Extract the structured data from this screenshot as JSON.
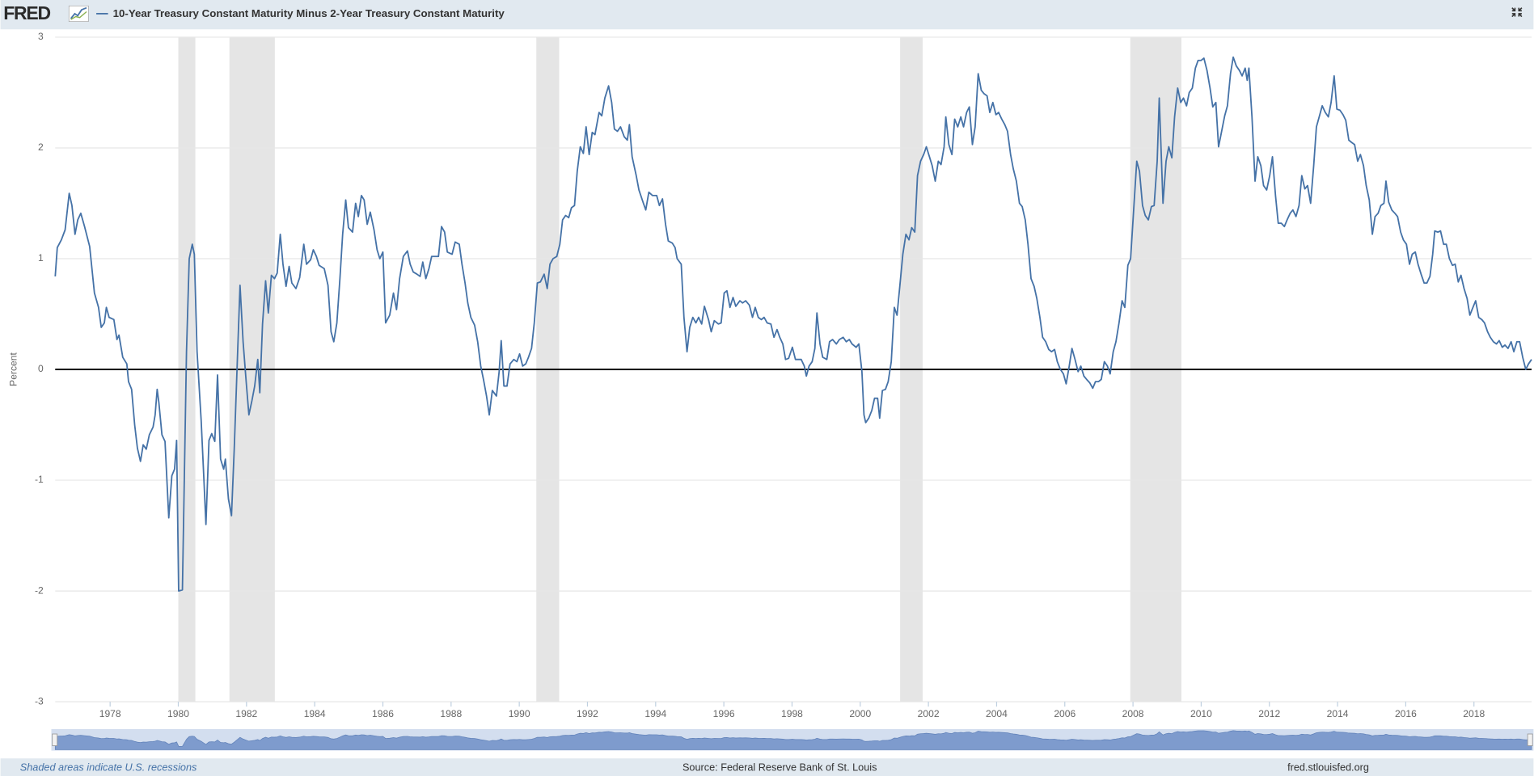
{
  "logo": "FRED",
  "footer": {
    "note": "Shaded areas indicate U.S. recessions",
    "source": "Source: Federal Reserve Bank of St. Louis",
    "site": "fred.stlouisfed.org"
  },
  "chart_data": {
    "type": "line",
    "y_label": "Percent",
    "series": [
      {
        "name": "10-Year Treasury Constant Maturity Minus 2-Year Treasury Constant Maturity",
        "color": "#4572a7",
        "values": [
          0.84,
          1.1,
          1.17,
          1.26,
          1.59,
          1.48,
          1.22,
          1.35,
          1.41,
          1.29,
          1.11,
          0.69,
          0.56,
          0.38,
          0.42,
          0.56,
          0.47,
          0.45,
          0.27,
          0.31,
          0.11,
          0.05,
          -0.11,
          -0.18,
          -0.5,
          -0.71,
          -0.83,
          -0.68,
          -0.72,
          -0.59,
          -0.52,
          -0.41,
          -0.18,
          -0.3,
          -0.59,
          -0.65,
          -1.34,
          -0.96,
          -0.9,
          -0.64,
          -2.0,
          -1.99,
          0.16,
          1.0,
          1.13,
          1.04,
          0.16,
          -0.46,
          -0.99,
          -1.4,
          -0.64,
          -0.58,
          -0.65,
          -0.05,
          -0.81,
          -0.9,
          -0.81,
          -1.17,
          -1.32,
          -0.72,
          0.07,
          0.76,
          0.25,
          -0.11,
          -0.41,
          -0.28,
          -0.15,
          0.09,
          -0.21,
          0.41,
          0.8,
          0.51,
          0.85,
          0.82,
          0.87,
          1.22,
          0.95,
          0.75,
          0.93,
          0.78,
          0.73,
          0.83,
          1.13,
          0.95,
          0.99,
          1.08,
          1.02,
          0.94,
          0.91,
          0.76,
          0.34,
          0.25,
          0.42,
          0.82,
          1.22,
          1.53,
          1.28,
          1.24,
          1.5,
          1.38,
          1.57,
          1.53,
          1.31,
          1.42,
          1.26,
          1.08,
          1.0,
          1.06,
          0.42,
          0.49,
          0.69,
          0.54,
          0.82,
          1.02,
          1.07,
          0.95,
          0.88,
          0.86,
          0.84,
          0.97,
          0.82,
          0.91,
          1.02,
          1.02,
          1.02,
          1.29,
          1.24,
          1.06,
          1.04,
          1.15,
          1.13,
          0.95,
          0.78,
          0.6,
          0.47,
          0.4,
          0.25,
          0.03,
          -0.09,
          -0.24,
          -0.41,
          -0.19,
          -0.24,
          -0.02,
          0.26,
          -0.15,
          -0.15,
          0.05,
          0.09,
          0.07,
          0.14,
          0.03,
          0.05,
          0.11,
          0.19,
          0.42,
          0.78,
          0.79,
          0.86,
          0.73,
          0.95,
          1.0,
          1.02,
          1.13,
          1.35,
          1.39,
          1.37,
          1.46,
          1.48,
          1.79,
          2.01,
          1.95,
          2.19,
          1.94,
          2.14,
          2.12,
          2.32,
          2.29,
          2.45,
          2.56,
          2.41,
          2.17,
          2.15,
          2.19,
          2.1,
          2.07,
          2.21,
          1.92,
          1.75,
          1.62,
          1.51,
          1.44,
          1.6,
          1.57,
          1.57,
          1.48,
          1.54,
          1.31,
          1.16,
          1.14,
          1.1,
          1.0,
          0.95,
          0.47,
          0.16,
          0.38,
          0.47,
          0.42,
          0.47,
          0.41,
          0.57,
          0.45,
          0.34,
          0.44,
          0.41,
          0.42,
          0.69,
          0.71,
          0.56,
          0.65,
          0.57,
          0.62,
          0.6,
          0.62,
          0.58,
          0.47,
          0.56,
          0.47,
          0.45,
          0.47,
          0.42,
          0.41,
          0.29,
          0.36,
          0.29,
          0.23,
          0.09,
          0.1,
          0.2,
          0.09,
          0.09,
          0.09,
          0.03,
          -0.06,
          0.03,
          0.07,
          0.19,
          0.51,
          0.23,
          0.11,
          0.09,
          0.25,
          0.27,
          0.23,
          0.27,
          0.29,
          0.25,
          0.27,
          0.23,
          0.2,
          0.23,
          -0.02,
          -0.41,
          -0.48,
          -0.44,
          -0.37,
          -0.26,
          -0.26,
          -0.44,
          -0.19,
          -0.18,
          -0.11,
          0.07,
          0.56,
          0.49,
          0.78,
          1.04,
          1.22,
          1.17,
          1.28,
          1.24,
          1.75,
          1.88,
          1.94,
          2.01,
          1.92,
          1.84,
          1.7,
          1.88,
          1.85,
          2.01,
          2.28,
          2.03,
          1.94,
          2.26,
          2.19,
          2.28,
          2.19,
          2.32,
          2.37,
          2.03,
          2.19,
          2.67,
          2.52,
          2.49,
          2.47,
          2.32,
          2.41,
          2.3,
          2.32,
          2.26,
          2.21,
          2.15,
          1.94,
          1.81,
          1.7,
          1.5,
          1.47,
          1.35,
          1.13,
          0.82,
          0.75,
          0.64,
          0.47,
          0.29,
          0.25,
          0.18,
          0.16,
          0.18,
          0.07,
          0,
          -0.04,
          -0.13,
          0.03,
          0.19,
          0.09,
          -0.02,
          0.03,
          -0.06,
          -0.09,
          -0.12,
          -0.17,
          -0.11,
          -0.11,
          -0.09,
          0.07,
          0.03,
          -0.04,
          0.16,
          0.25,
          0.42,
          0.62,
          0.56,
          0.94,
          1.0,
          1.44,
          1.88,
          1.79,
          1.48,
          1.39,
          1.35,
          1.47,
          1.48,
          1.88,
          2.45,
          1.5,
          1.88,
          2.01,
          1.91,
          2.28,
          2.54,
          2.41,
          2.45,
          2.38,
          2.5,
          2.54,
          2.72,
          2.79,
          2.79,
          2.81,
          2.7,
          2.54,
          2.37,
          2.41,
          2.01,
          2.15,
          2.29,
          2.38,
          2.67,
          2.82,
          2.74,
          2.7,
          2.65,
          2.72,
          2.61,
          2.72,
          2.28,
          1.7,
          1.92,
          1.84,
          1.66,
          1.62,
          1.75,
          1.92,
          1.57,
          1.32,
          1.32,
          1.29,
          1.35,
          1.41,
          1.44,
          1.38,
          1.48,
          1.75,
          1.63,
          1.66,
          1.5,
          1.84,
          2.19,
          2.29,
          2.38,
          2.32,
          2.28,
          2.41,
          2.65,
          2.35,
          2.34,
          2.3,
          2.25,
          2.07,
          2.05,
          2.03,
          1.88,
          1.94,
          1.84,
          1.66,
          1.53,
          1.22,
          1.38,
          1.41,
          1.48,
          1.5,
          1.7,
          1.51,
          1.44,
          1.41,
          1.38,
          1.24,
          1.17,
          1.13,
          0.95,
          1.04,
          1.06,
          0.95,
          0.86,
          0.78,
          0.78,
          0.84,
          1.04,
          1.25,
          1.24,
          1.25,
          1.13,
          1.13,
          1.0,
          0.94,
          0.95,
          0.79,
          0.85,
          0.73,
          0.64,
          0.49,
          0.56,
          0.62,
          0.47,
          0.45,
          0.42,
          0.34,
          0.29,
          0.25,
          0.23,
          0.26,
          0.2,
          0.22,
          0.19,
          0.25,
          0.16,
          0.25,
          0.25,
          0.11,
          0,
          0.05,
          0.09
        ]
      }
    ],
    "x": [
      1976.39,
      1976.45,
      1976.57,
      1976.68,
      1976.8,
      1976.88,
      1976.97,
      1977.05,
      1977.14,
      1977.25,
      1977.4,
      1977.54,
      1977.66,
      1977.74,
      1977.83,
      1977.89,
      1977.97,
      1978.11,
      1978.2,
      1978.26,
      1978.37,
      1978.49,
      1978.54,
      1978.63,
      1978.72,
      1978.8,
      1978.89,
      1978.97,
      1979.06,
      1979.15,
      1979.26,
      1979.32,
      1979.38,
      1979.43,
      1979.52,
      1979.61,
      1979.72,
      1979.81,
      1979.89,
      1979.95,
      1980.01,
      1980.12,
      1980.24,
      1980.32,
      1980.41,
      1980.47,
      1980.55,
      1980.67,
      1980.75,
      1980.81,
      1980.9,
      1980.98,
      1981.07,
      1981.15,
      1981.24,
      1981.33,
      1981.38,
      1981.47,
      1981.56,
      1981.64,
      1981.73,
      1981.81,
      1981.9,
      1981.99,
      1982.07,
      1982.16,
      1982.24,
      1982.33,
      1982.39,
      1982.47,
      1982.56,
      1982.64,
      1982.73,
      1982.82,
      1982.9,
      1982.99,
      1983.07,
      1983.16,
      1983.25,
      1983.33,
      1983.45,
      1983.56,
      1983.68,
      1983.76,
      1983.88,
      1983.96,
      1984.05,
      1984.13,
      1984.28,
      1984.39,
      1984.48,
      1984.56,
      1984.65,
      1984.74,
      1984.82,
      1984.91,
      1984.99,
      1985.11,
      1985.2,
      1985.28,
      1985.37,
      1985.45,
      1985.54,
      1985.63,
      1985.74,
      1985.83,
      1985.91,
      1986.0,
      1986.08,
      1986.2,
      1986.31,
      1986.4,
      1986.49,
      1986.6,
      1986.72,
      1986.8,
      1986.89,
      1987.0,
      1987.09,
      1987.17,
      1987.26,
      1987.35,
      1987.43,
      1987.55,
      1987.63,
      1987.72,
      1987.81,
      1987.89,
      1988.03,
      1988.12,
      1988.24,
      1988.32,
      1988.41,
      1988.49,
      1988.58,
      1988.69,
      1988.78,
      1988.87,
      1988.95,
      1989.04,
      1989.12,
      1989.21,
      1989.33,
      1989.41,
      1989.47,
      1989.55,
      1989.64,
      1989.73,
      1989.84,
      1989.93,
      1990.01,
      1990.1,
      1990.19,
      1990.27,
      1990.36,
      1990.44,
      1990.53,
      1990.62,
      1990.73,
      1990.82,
      1990.9,
      1990.99,
      1991.1,
      1991.19,
      1991.27,
      1991.36,
      1991.45,
      1991.53,
      1991.62,
      1991.7,
      1991.79,
      1991.88,
      1991.96,
      1992.05,
      1992.14,
      1992.22,
      1992.34,
      1992.42,
      1992.51,
      1992.62,
      1992.71,
      1992.79,
      1992.88,
      1992.97,
      1993.08,
      1993.17,
      1993.23,
      1993.31,
      1993.43,
      1993.51,
      1993.63,
      1993.71,
      1993.8,
      1993.91,
      1994.03,
      1994.11,
      1994.2,
      1994.29,
      1994.37,
      1994.49,
      1994.57,
      1994.63,
      1994.75,
      1994.83,
      1994.92,
      1995.0,
      1995.09,
      1995.18,
      1995.26,
      1995.35,
      1995.43,
      1995.55,
      1995.63,
      1995.72,
      1995.84,
      1995.92,
      1996.01,
      1996.09,
      1996.18,
      1996.27,
      1996.35,
      1996.47,
      1996.55,
      1996.64,
      1996.75,
      1996.84,
      1996.92,
      1997.01,
      1997.1,
      1997.18,
      1997.27,
      1997.38,
      1997.47,
      1997.56,
      1997.64,
      1997.73,
      1997.81,
      1997.9,
      1998.01,
      1998.1,
      1998.19,
      1998.27,
      1998.36,
      1998.42,
      1998.5,
      1998.59,
      1998.67,
      1998.73,
      1998.82,
      1998.9,
      1999.02,
      1999.1,
      1999.19,
      1999.3,
      1999.39,
      1999.5,
      1999.59,
      1999.68,
      1999.76,
      1999.88,
      1999.96,
      2000.05,
      2000.11,
      2000.16,
      2000.25,
      2000.34,
      2000.42,
      2000.51,
      2000.57,
      2000.65,
      2000.74,
      2000.82,
      2000.91,
      2001.0,
      2001.08,
      2001.17,
      2001.25,
      2001.34,
      2001.43,
      2001.51,
      2001.6,
      2001.68,
      2001.77,
      2001.86,
      2001.94,
      2002.03,
      2002.11,
      2002.2,
      2002.29,
      2002.37,
      2002.46,
      2002.51,
      2002.6,
      2002.69,
      2002.77,
      2002.86,
      2002.95,
      2003.03,
      2003.12,
      2003.2,
      2003.29,
      2003.37,
      2003.46,
      2003.55,
      2003.63,
      2003.72,
      2003.8,
      2003.89,
      2003.98,
      2004.06,
      2004.15,
      2004.24,
      2004.32,
      2004.41,
      2004.49,
      2004.58,
      2004.67,
      2004.75,
      2004.84,
      2004.92,
      2005.01,
      2005.1,
      2005.18,
      2005.27,
      2005.35,
      2005.44,
      2005.53,
      2005.61,
      2005.7,
      2005.78,
      2005.87,
      2005.96,
      2006.04,
      2006.13,
      2006.21,
      2006.3,
      2006.39,
      2006.47,
      2006.56,
      2006.64,
      2006.73,
      2006.82,
      2006.9,
      2006.99,
      2007.07,
      2007.16,
      2007.25,
      2007.33,
      2007.42,
      2007.5,
      2007.59,
      2007.68,
      2007.76,
      2007.85,
      2007.93,
      2008.02,
      2008.11,
      2008.19,
      2008.28,
      2008.36,
      2008.45,
      2008.54,
      2008.62,
      2008.71,
      2008.77,
      2008.88,
      2008.97,
      2009.05,
      2009.14,
      2009.22,
      2009.31,
      2009.4,
      2009.48,
      2009.57,
      2009.65,
      2009.74,
      2009.83,
      2009.91,
      2010.0,
      2010.08,
      2010.17,
      2010.26,
      2010.34,
      2010.43,
      2010.51,
      2010.6,
      2010.69,
      2010.77,
      2010.86,
      2010.94,
      2011.03,
      2011.12,
      2011.2,
      2011.29,
      2011.35,
      2011.4,
      2011.49,
      2011.58,
      2011.66,
      2011.75,
      2011.83,
      2011.92,
      2012.01,
      2012.09,
      2012.18,
      2012.26,
      2012.35,
      2012.44,
      2012.52,
      2012.61,
      2012.69,
      2012.78,
      2012.87,
      2012.95,
      2013.04,
      2013.12,
      2013.21,
      2013.3,
      2013.38,
      2013.47,
      2013.55,
      2013.64,
      2013.73,
      2013.81,
      2013.9,
      2013.98,
      2014.07,
      2014.16,
      2014.24,
      2014.33,
      2014.41,
      2014.5,
      2014.59,
      2014.67,
      2014.76,
      2014.84,
      2014.93,
      2015.02,
      2015.1,
      2015.19,
      2015.27,
      2015.36,
      2015.42,
      2015.5,
      2015.59,
      2015.68,
      2015.76,
      2015.85,
      2015.93,
      2016.02,
      2016.11,
      2016.19,
      2016.28,
      2016.36,
      2016.45,
      2016.54,
      2016.62,
      2016.71,
      2016.79,
      2016.85,
      2016.94,
      2017.02,
      2017.11,
      2017.19,
      2017.28,
      2017.37,
      2017.45,
      2017.54,
      2017.62,
      2017.71,
      2017.8,
      2017.88,
      2017.97,
      2018.05,
      2018.14,
      2018.23,
      2018.31,
      2018.4,
      2018.48,
      2018.57,
      2018.66,
      2018.74,
      2018.83,
      2018.91,
      2019.0,
      2019.09,
      2019.17,
      2019.26,
      2019.34,
      2019.43,
      2019.52,
      2019.6,
      2019.69
    ],
    "recessions": [
      [
        1980.0,
        1980.5
      ],
      [
        1981.5,
        1982.83
      ],
      [
        1990.5,
        1991.17
      ],
      [
        2001.17,
        2001.83
      ],
      [
        2007.92,
        2009.42
      ]
    ],
    "recession_color": "#e5e5e5",
    "xlim": [
      1976.39,
      2019.69
    ],
    "xticks": [
      1978,
      1980,
      1982,
      1984,
      1986,
      1988,
      1990,
      1992,
      1994,
      1996,
      1998,
      2000,
      2002,
      2004,
      2006,
      2008,
      2010,
      2012,
      2014,
      2016,
      2018
    ],
    "ylim": [
      -3,
      3
    ],
    "yticks": [
      -3,
      -2,
      -1,
      0,
      1,
      2,
      3
    ],
    "grid": true
  }
}
